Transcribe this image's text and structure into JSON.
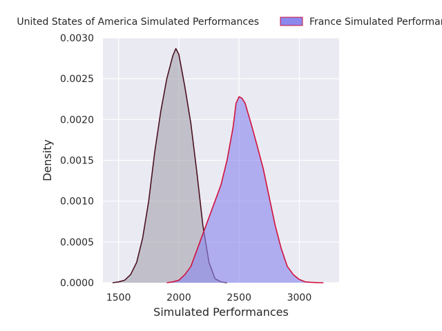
{
  "chart_data": {
    "type": "area",
    "title": "",
    "xlabel": "Simulated Performances",
    "ylabel": "Density",
    "xlim": [
      1370,
      3330
    ],
    "ylim": [
      0,
      0.003
    ],
    "x_ticks": [
      1500,
      2000,
      2500,
      3000
    ],
    "x_tick_labels": [
      "1500",
      "2000",
      "2500",
      "3000"
    ],
    "y_ticks": [
      0,
      0.0005,
      0.001,
      0.0015,
      0.002,
      0.0025,
      0.003
    ],
    "y_tick_labels": [
      "0.0000",
      "0.0005",
      "0.0010",
      "0.0015",
      "0.0020",
      "0.0025",
      "0.0030"
    ],
    "grid": true,
    "legend_position": "top",
    "series": [
      {
        "name": "United States of America Simulated Performances",
        "fill_color": "#a8a6b2",
        "line_color": "#4a1020",
        "x": [
          1450,
          1500,
          1550,
          1600,
          1650,
          1700,
          1750,
          1800,
          1850,
          1900,
          1950,
          1975,
          2000,
          2025,
          2050,
          2100,
          2150,
          2200,
          2250,
          2300,
          2350,
          2400
        ],
        "y": [
          0,
          1e-05,
          3e-05,
          0.0001,
          0.00025,
          0.00055,
          0.001,
          0.0016,
          0.0021,
          0.0025,
          0.00278,
          0.00287,
          0.0028,
          0.0026,
          0.0024,
          0.00195,
          0.00135,
          0.0007,
          0.00025,
          5e-05,
          1e-05,
          0
        ]
      },
      {
        "name": "France Simulated Performances",
        "fill_color": "#8b88ee",
        "line_color": "#d0103a",
        "x": [
          1900,
          1950,
          2000,
          2050,
          2100,
          2150,
          2200,
          2250,
          2300,
          2350,
          2400,
          2450,
          2475,
          2500,
          2525,
          2550,
          2600,
          2650,
          2700,
          2750,
          2800,
          2850,
          2900,
          2950,
          3000,
          3050,
          3100,
          3150,
          3200
        ],
        "y": [
          0,
          1e-05,
          3e-05,
          0.0001,
          0.0002,
          0.0004,
          0.0006,
          0.0008,
          0.001,
          0.0012,
          0.0015,
          0.0019,
          0.0022,
          0.00228,
          0.00226,
          0.0022,
          0.00195,
          0.00168,
          0.0014,
          0.00105,
          0.0007,
          0.00042,
          0.0002,
          0.0001,
          4e-05,
          1e-05,
          5e-06,
          2e-06,
          0
        ]
      }
    ]
  }
}
